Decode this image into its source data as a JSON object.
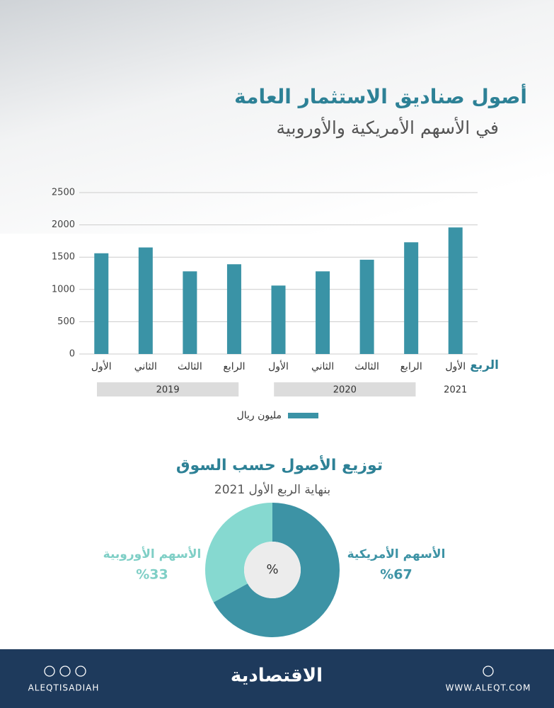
{
  "header": {
    "title": "أصول صناديق الاستثمار العامة",
    "subtitle": "في الأسهم الأمريكية والأوروبية"
  },
  "chart_data": [
    {
      "type": "bar",
      "categories": [
        "الأول",
        "الثاني",
        "الثالث",
        "الرابع",
        "الأول",
        "الثاني",
        "الثالث",
        "الرابع",
        "الأول"
      ],
      "years": [
        "2019",
        "2020",
        "2021"
      ],
      "x_label": "الربع",
      "values": [
        1560,
        1650,
        1280,
        1390,
        1060,
        1280,
        1460,
        1730,
        1960
      ],
      "color": "#3a93a6",
      "ylim": [
        0,
        2500
      ],
      "yticks": [
        0,
        500,
        1000,
        1500,
        2000,
        2500
      ],
      "grid": true,
      "legend": "مليون ريال"
    },
    {
      "type": "pie",
      "title": "توزيع الأصول حسب السوق",
      "subtitle": "بنهاية الربع الأول 2021",
      "center_label": "%",
      "categories": [
        "الأسهم الأمريكية",
        "الأسهم الأوروبية"
      ],
      "values": [
        67,
        33
      ],
      "value_labels": [
        "%67",
        "%33"
      ],
      "colors": [
        "#3d93a5",
        "#86d9d0"
      ]
    }
  ],
  "footer": {
    "social": "ALEQTISADIAH",
    "logo": "الاقتصادية",
    "site": "WWW.ALEQT.COM"
  }
}
